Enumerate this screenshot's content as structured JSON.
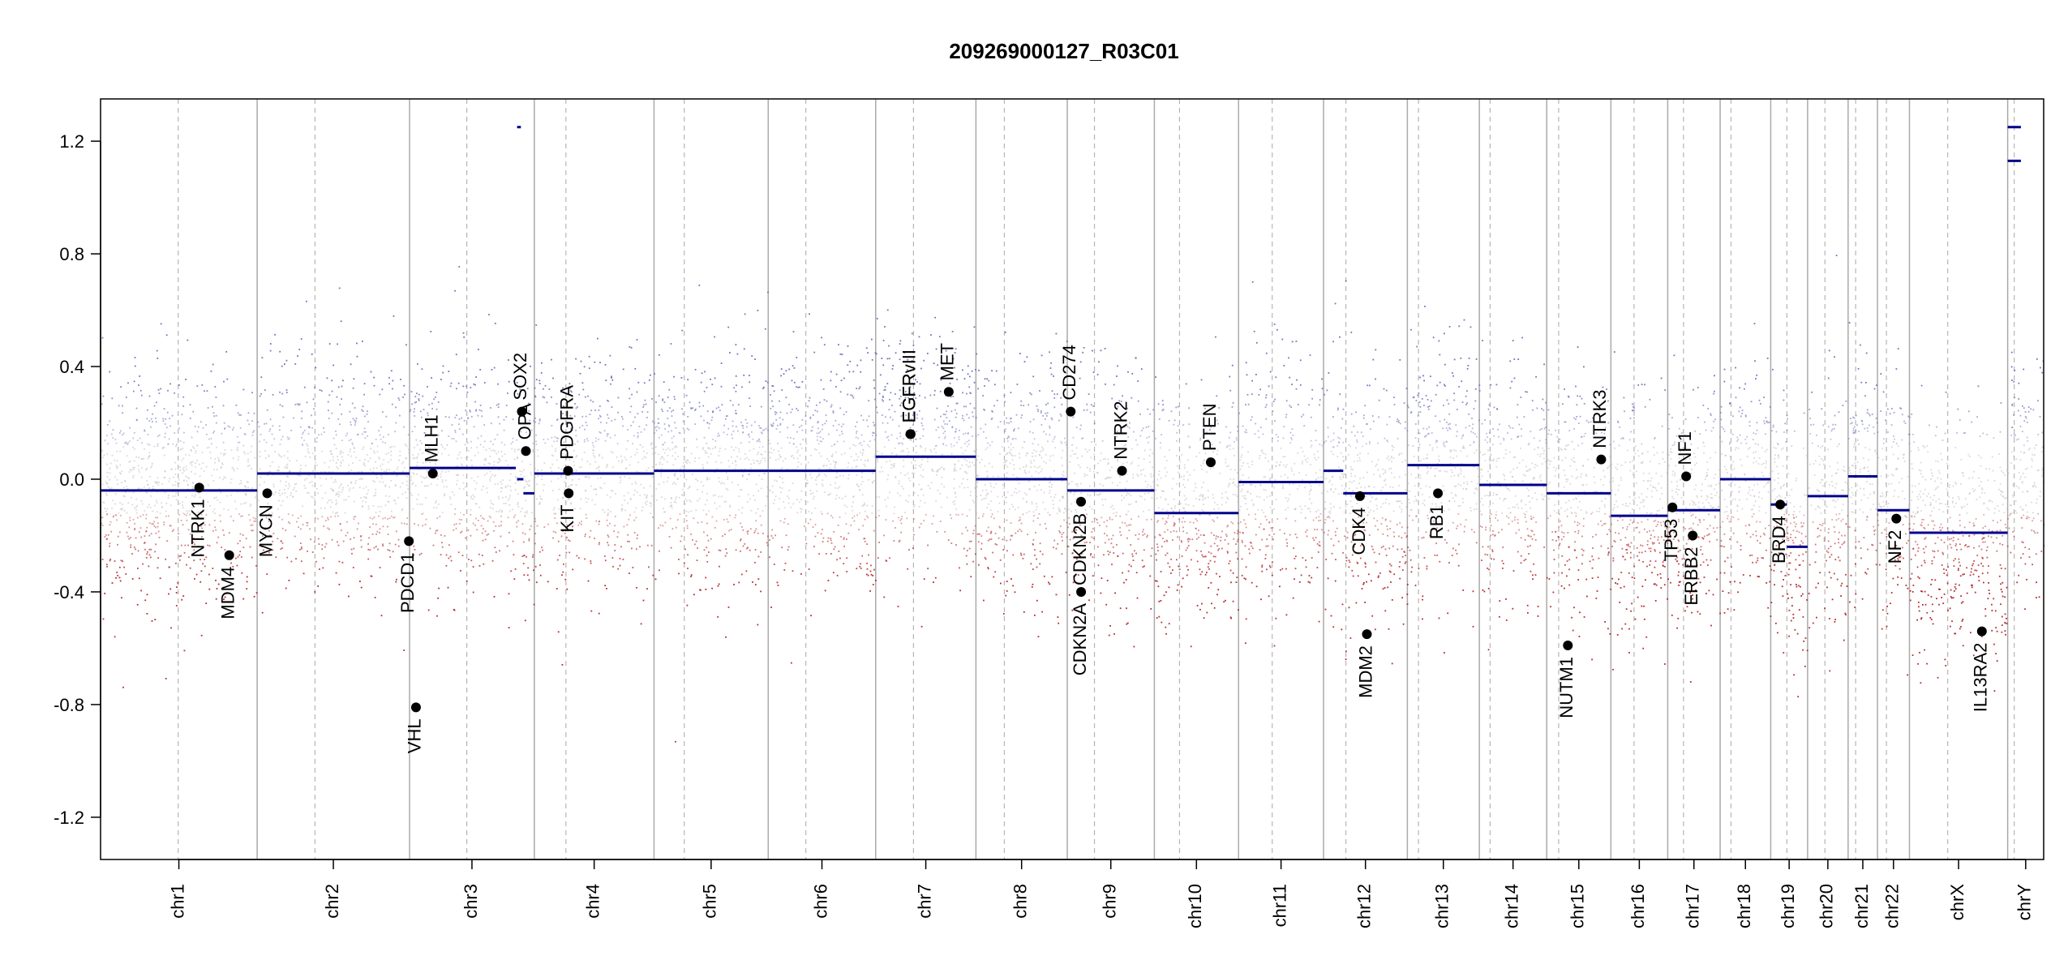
{
  "chart_data": {
    "type": "scatter",
    "title": "209269000127_R03C01",
    "xlabel": "",
    "ylabel": "",
    "ylim": [
      -1.35,
      1.35
    ],
    "y_ticks": [
      -1.2,
      -0.8,
      -0.4,
      0.0,
      0.4,
      0.8,
      1.2
    ],
    "y_tick_labels": [
      "-1.2",
      "-0.8",
      "-0.4",
      "0.0",
      "0.4",
      "0.8",
      "1.2"
    ],
    "colors": {
      "gain": "#6a6fb8",
      "loss": "#b22222",
      "neutral": "#bbbbbb",
      "segment": "#00008b",
      "boundary": "#aaaaaa",
      "centromere": "#b5b5b5",
      "gene_point": "#000000"
    },
    "chromosomes": [
      {
        "name": "chr1",
        "start": 0.0,
        "end": 248.9,
        "centromere": 123.4
      },
      {
        "name": "chr2",
        "start": 248.9,
        "end": 491.1,
        "centromere": 340.8
      },
      {
        "name": "chr3",
        "start": 491.1,
        "end": 689.4,
        "centromere": 582.1
      },
      {
        "name": "chr4",
        "start": 689.4,
        "end": 879.6,
        "centromere": 739.6
      },
      {
        "name": "chr5",
        "start": 879.6,
        "end": 1061.1,
        "centromere": 927.7
      },
      {
        "name": "chr6",
        "start": 1061.1,
        "end": 1231.9,
        "centromere": 1120.9
      },
      {
        "name": "chr7",
        "start": 1231.9,
        "end": 1391.2,
        "centromere": 1292.0
      },
      {
        "name": "chr8",
        "start": 1391.2,
        "end": 1536.4,
        "centromere": 1436.4
      },
      {
        "name": "chr9",
        "start": 1536.4,
        "end": 1674.8,
        "centromere": 1579.6
      },
      {
        "name": "chr10",
        "start": 1674.8,
        "end": 1808.6,
        "centromere": 1714.8
      },
      {
        "name": "chr11",
        "start": 1808.6,
        "end": 1943.7,
        "centromere": 1862.1
      },
      {
        "name": "chr12",
        "start": 1943.7,
        "end": 2076.9,
        "centromere": 1979.2
      },
      {
        "name": "chr13",
        "start": 2076.9,
        "end": 2191.3,
        "centromere": 2094.6
      },
      {
        "name": "chr14",
        "start": 2191.3,
        "end": 2298.4,
        "centromere": 2208.4
      },
      {
        "name": "chr15",
        "start": 2298.4,
        "end": 2400.4,
        "centromere": 2317.4
      },
      {
        "name": "chr16",
        "start": 2400.4,
        "end": 2490.7,
        "centromere": 2437.2
      },
      {
        "name": "chr17",
        "start": 2490.7,
        "end": 2574.0,
        "centromere": 2515.8
      },
      {
        "name": "chr18",
        "start": 2574.0,
        "end": 2654.4,
        "centromere": 2591.3
      },
      {
        "name": "chr19",
        "start": 2654.4,
        "end": 2713.0,
        "centromere": 2680.1
      },
      {
        "name": "chr20",
        "start": 2713.0,
        "end": 2777.4,
        "centromere": 2740.5
      },
      {
        "name": "chr21",
        "start": 2777.4,
        "end": 2824.1,
        "centromere": 2789.4
      },
      {
        "name": "chr22",
        "start": 2824.1,
        "end": 2874.9,
        "centromere": 2838.3
      },
      {
        "name": "chrX",
        "start": 2874.9,
        "end": 3031.0,
        "centromere": 2935.7
      },
      {
        "name": "chrY",
        "start": 3031.0,
        "end": 3088.2,
        "centromere": 3041.4
      }
    ],
    "segments": [
      {
        "chr": "chr1",
        "x0": 0.0,
        "x1": 248.9,
        "y": -0.04
      },
      {
        "chr": "chr2",
        "x0": 248.9,
        "x1": 491.1,
        "y": 0.02
      },
      {
        "chr": "chr3",
        "x0": 491.1,
        "x1": 660.0,
        "y": 0.04
      },
      {
        "chr": "chr3",
        "x0": 662.0,
        "x1": 672.0,
        "y": 0.0
      },
      {
        "chr": "chr3",
        "x0": 672.0,
        "x1": 689.4,
        "y": -0.05
      },
      {
        "chr": "chr3",
        "x0": 662.0,
        "x1": 668.0,
        "y": 1.25
      },
      {
        "chr": "chr4",
        "x0": 689.4,
        "x1": 879.6,
        "y": 0.02
      },
      {
        "chr": "chr5",
        "x0": 879.6,
        "x1": 1061.1,
        "y": 0.03
      },
      {
        "chr": "chr6",
        "x0": 1061.1,
        "x1": 1231.9,
        "y": 0.03
      },
      {
        "chr": "chr7",
        "x0": 1231.9,
        "x1": 1391.2,
        "y": 0.08
      },
      {
        "chr": "chr8",
        "x0": 1391.2,
        "x1": 1536.4,
        "y": 0.0
      },
      {
        "chr": "chr9",
        "x0": 1536.4,
        "x1": 1674.8,
        "y": -0.04
      },
      {
        "chr": "chr10",
        "x0": 1674.8,
        "x1": 1808.6,
        "y": -0.12
      },
      {
        "chr": "chr11",
        "x0": 1808.6,
        "x1": 1943.7,
        "y": -0.01
      },
      {
        "chr": "chr12",
        "x0": 1943.7,
        "x1": 1975.0,
        "y": 0.03
      },
      {
        "chr": "chr12",
        "x0": 1975.0,
        "x1": 2076.9,
        "y": -0.05
      },
      {
        "chr": "chr13",
        "x0": 2076.9,
        "x1": 2191.3,
        "y": 0.05
      },
      {
        "chr": "chr14",
        "x0": 2191.3,
        "x1": 2298.4,
        "y": -0.02
      },
      {
        "chr": "chr15",
        "x0": 2298.4,
        "x1": 2400.4,
        "y": -0.05
      },
      {
        "chr": "chr16",
        "x0": 2400.4,
        "x1": 2490.7,
        "y": -0.13
      },
      {
        "chr": "chr17",
        "x0": 2490.7,
        "x1": 2574.0,
        "y": -0.11
      },
      {
        "chr": "chr18",
        "x0": 2574.0,
        "x1": 2654.4,
        "y": 0.0
      },
      {
        "chr": "chr19",
        "x0": 2654.4,
        "x1": 2680.0,
        "y": -0.09
      },
      {
        "chr": "chr19",
        "x0": 2680.0,
        "x1": 2713.0,
        "y": -0.24
      },
      {
        "chr": "chr20",
        "x0": 2713.0,
        "x1": 2777.4,
        "y": -0.06
      },
      {
        "chr": "chr21",
        "x0": 2777.4,
        "x1": 2824.1,
        "y": 0.01
      },
      {
        "chr": "chr22",
        "x0": 2824.1,
        "x1": 2874.9,
        "y": -0.11
      },
      {
        "chr": "chrX",
        "x0": 2874.9,
        "x1": 3031.0,
        "y": -0.19
      },
      {
        "chr": "chrY",
        "x0": 3031.0,
        "x1": 3052.0,
        "y": 1.25
      },
      {
        "chr": "chrY",
        "x0": 3031.0,
        "x1": 3052.0,
        "y": 1.13
      }
    ],
    "genes": [
      {
        "name": "NTRK1",
        "x": 156.8,
        "y": -0.03
      },
      {
        "name": "MDM4",
        "x": 204.5,
        "y": -0.27
      },
      {
        "name": "MYCN",
        "x": 264.9,
        "y": -0.05
      },
      {
        "name": "PDCD1",
        "x": 490.0,
        "y": -0.22
      },
      {
        "name": "VHL",
        "x": 501.3,
        "y": -0.81
      },
      {
        "name": "MLH1",
        "x": 528.1,
        "y": 0.02
      },
      {
        "name": "SOX2",
        "x": 669.5,
        "y": 0.24
      },
      {
        "name": "OPA",
        "x": 676.0,
        "y": 0.1
      },
      {
        "name": "PDGFRA",
        "x": 743.0,
        "y": 0.03
      },
      {
        "name": "KIT",
        "x": 744.0,
        "y": -0.05
      },
      {
        "name": "EGFR",
        "x": 1287.0,
        "y": 0.16
      },
      {
        "name": "EGFRvIII",
        "x": 1287.5,
        "y": 0.16
      },
      {
        "name": "MET",
        "x": 1348.0,
        "y": 0.31
      },
      {
        "name": "CD274",
        "x": 1541.9,
        "y": 0.24
      },
      {
        "name": "CDKN2B",
        "x": 1558.3,
        "y": -0.08
      },
      {
        "name": "CDKN2A",
        "x": 1558.4,
        "y": -0.4
      },
      {
        "name": "NTRK2",
        "x": 1623.4,
        "y": 0.03
      },
      {
        "name": "PTEN",
        "x": 1764.5,
        "y": 0.06
      },
      {
        "name": "CDK4",
        "x": 2001.6,
        "y": -0.06
      },
      {
        "name": "MDM2",
        "x": 2012.6,
        "y": -0.55
      },
      {
        "name": "RB1",
        "x": 2125.5,
        "y": -0.05
      },
      {
        "name": "NUTM1",
        "x": 2332.0,
        "y": -0.59
      },
      {
        "name": "NTRK3",
        "x": 2385.0,
        "y": 0.07
      },
      {
        "name": "TP53",
        "x": 2498.2,
        "y": -0.1
      },
      {
        "name": "ERBB2",
        "x": 2530.4,
        "y": -0.2
      },
      {
        "name": "NF1",
        "x": 2520.0,
        "y": 0.01
      },
      {
        "name": "BRD4",
        "x": 2669.5,
        "y": -0.09
      },
      {
        "name": "NF2",
        "x": 2854.0,
        "y": -0.14
      },
      {
        "name": "IL13RA2",
        "x": 2990.0,
        "y": -0.54
      }
    ]
  }
}
